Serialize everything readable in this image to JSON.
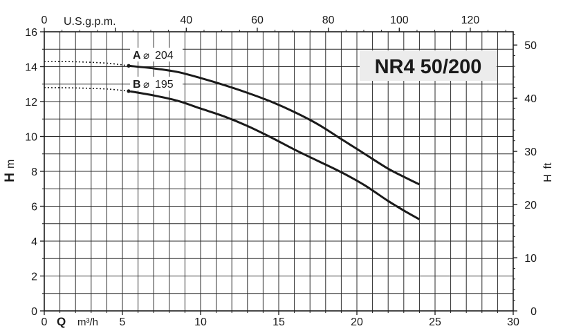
{
  "chart_data": {
    "type": "line",
    "title": "NR4 50/200",
    "x_bottom": {
      "label_prefix": "Q",
      "unit": "m³/h",
      "range": [
        0,
        30
      ],
      "ticks": [
        0,
        5,
        10,
        15,
        20,
        25,
        30
      ]
    },
    "x_top": {
      "label": "U.S.g.p.m.",
      "range": [
        0,
        132.09
      ],
      "ticks": [
        0,
        20,
        40,
        60,
        80,
        100,
        120
      ],
      "tick_labels": [
        "0",
        "",
        "40",
        "60",
        "80",
        "100",
        "120"
      ]
    },
    "y_left": {
      "label": "H",
      "unit": "m",
      "range": [
        0,
        16
      ],
      "ticks": [
        0,
        2,
        4,
        6,
        8,
        10,
        12,
        14,
        16
      ]
    },
    "y_right": {
      "label": "H",
      "unit": "ft",
      "range": [
        0,
        52.49
      ],
      "ticks": [
        0,
        10,
        20,
        30,
        40,
        50
      ]
    },
    "grid": true,
    "series": [
      {
        "name": "A",
        "diameter": "204",
        "style": "solid",
        "points": [
          [
            5.4,
            14.05
          ],
          [
            7,
            13.9
          ],
          [
            8.5,
            13.7
          ],
          [
            10,
            13.35
          ],
          [
            11.5,
            12.95
          ],
          [
            13,
            12.5
          ],
          [
            14.5,
            12.0
          ],
          [
            16,
            11.4
          ],
          [
            17.5,
            10.7
          ],
          [
            19,
            9.85
          ],
          [
            20.5,
            9.0
          ],
          [
            22,
            8.15
          ],
          [
            23.2,
            7.6
          ],
          [
            24,
            7.25
          ]
        ],
        "dotted_points": [
          [
            0,
            14.3
          ],
          [
            2,
            14.28
          ],
          [
            4,
            14.2
          ],
          [
            5.4,
            14.05
          ]
        ]
      },
      {
        "name": "B",
        "diameter": "195",
        "style": "solid",
        "points": [
          [
            5.4,
            12.6
          ],
          [
            7,
            12.35
          ],
          [
            8.5,
            12.05
          ],
          [
            10,
            11.6
          ],
          [
            11.5,
            11.15
          ],
          [
            13,
            10.6
          ],
          [
            14.5,
            9.95
          ],
          [
            16,
            9.25
          ],
          [
            17.5,
            8.6
          ],
          [
            19,
            7.95
          ],
          [
            20.5,
            7.2
          ],
          [
            22,
            6.3
          ],
          [
            23.2,
            5.65
          ],
          [
            24,
            5.25
          ]
        ],
        "dotted_points": [
          [
            0,
            12.8
          ],
          [
            2,
            12.78
          ],
          [
            4,
            12.72
          ],
          [
            5.4,
            12.6
          ]
        ]
      }
    ]
  }
}
